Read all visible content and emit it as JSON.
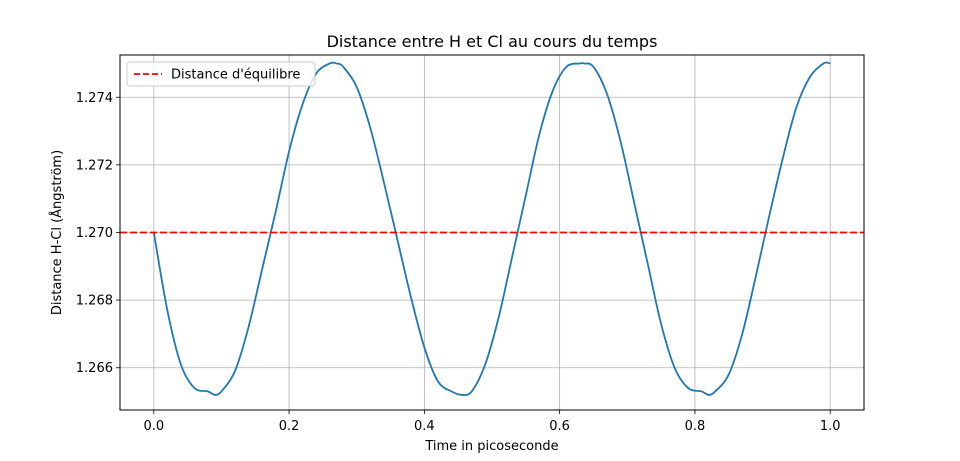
{
  "chart_data": {
    "type": "line",
    "title": "Distance entre H et Cl au cours du temps",
    "xlabel": "Time in picoseconde",
    "ylabel": "Distance H-Cl (Ångström)",
    "xlim": [
      -0.05,
      1.05
    ],
    "ylim": [
      1.26475,
      1.27525
    ],
    "x_ticks": [
      0.0,
      0.2,
      0.4,
      0.6,
      0.8,
      1.0
    ],
    "x_tick_labels": [
      "0.0",
      "0.2",
      "0.4",
      "0.6",
      "0.8",
      "1.0"
    ],
    "y_ticks": [
      1.266,
      1.268,
      1.27,
      1.272,
      1.274
    ],
    "y_tick_labels": [
      "1.266",
      "1.268",
      "1.270",
      "1.272",
      "1.274"
    ],
    "grid": true,
    "legend": {
      "placement": "top-left",
      "entries": [
        "Distance d'équilibre"
      ]
    },
    "series": [
      {
        "type": "line",
        "color": "#1f77b4",
        "x": [
          0.0,
          0.02,
          0.04,
          0.06,
          0.08,
          0.09,
          0.1,
          0.12,
          0.14,
          0.16,
          0.18,
          0.2,
          0.22,
          0.24,
          0.26,
          0.27,
          0.28,
          0.3,
          0.32,
          0.34,
          0.36,
          0.38,
          0.4,
          0.42,
          0.44,
          0.455,
          0.47,
          0.49,
          0.51,
          0.53,
          0.55,
          0.57,
          0.59,
          0.61,
          0.63,
          0.636,
          0.65,
          0.67,
          0.69,
          0.71,
          0.73,
          0.75,
          0.77,
          0.79,
          0.81,
          0.82,
          0.83,
          0.85,
          0.87,
          0.89,
          0.91,
          0.93,
          0.95,
          0.97,
          0.99,
          1.0
        ],
        "y": [
          1.27,
          1.2677,
          1.2661,
          1.2654,
          1.2653,
          1.2652,
          1.2653,
          1.2659,
          1.2672,
          1.2689,
          1.2706,
          1.2724,
          1.2738,
          1.2747,
          1.275,
          1.275,
          1.2749,
          1.2743,
          1.2731,
          1.2715,
          1.2698,
          1.2681,
          1.2666,
          1.2656,
          1.2653,
          1.2652,
          1.2653,
          1.2661,
          1.2675,
          1.2693,
          1.2711,
          1.2729,
          1.2742,
          1.2749,
          1.275,
          1.275,
          1.2749,
          1.2741,
          1.2727,
          1.2709,
          1.2691,
          1.2673,
          1.266,
          1.2654,
          1.2653,
          1.2652,
          1.2653,
          1.2658,
          1.267,
          1.2687,
          1.2705,
          1.2722,
          1.2737,
          1.2746,
          1.275,
          1.275
        ]
      },
      {
        "name": "Distance d'équilibre",
        "type": "hline",
        "color": "#ff0000",
        "y": 1.27,
        "dash": "dashed"
      }
    ]
  }
}
